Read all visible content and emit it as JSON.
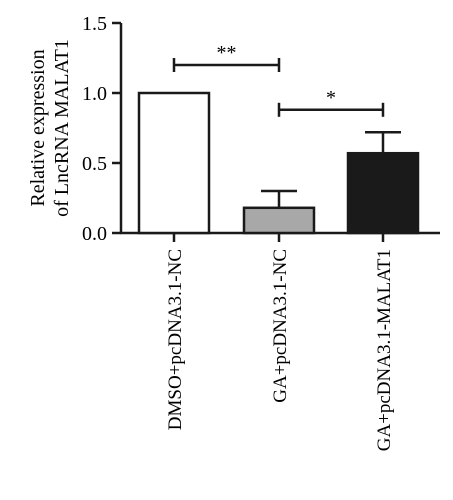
{
  "chart_data": {
    "type": "bar",
    "ylabel_lines": [
      "Relative expression",
      "of LncRNA MALAT1"
    ],
    "categories": [
      "DMSO+pcDNA3.1-NC",
      "GA+pcDNA3.1-NC",
      "GA+pcDNA3.1-MALAT1"
    ],
    "values": [
      1.0,
      0.18,
      0.57
    ],
    "errors": [
      0.0,
      0.12,
      0.15
    ],
    "bar_colors": [
      "#ffffff",
      "#a8a8a8",
      "#1a1a1a"
    ],
    "ylim": [
      0,
      1.5
    ],
    "yticks": [
      0,
      0.5,
      1.0,
      1.5
    ],
    "ytick_labels": [
      "0.0",
      "0.5",
      "1.0",
      "1.5"
    ],
    "grid": false,
    "significance": [
      {
        "from": 0,
        "to": 1,
        "label": "**",
        "y": 1.2
      },
      {
        "from": 1,
        "to": 2,
        "label": "*",
        "y": 0.88
      }
    ]
  }
}
